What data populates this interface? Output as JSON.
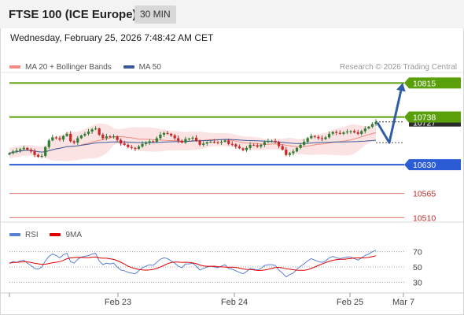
{
  "header": {
    "title": "FTSE 100 (ICE Europe)",
    "timeframe": "30 MIN"
  },
  "date_line": "Wednesday, February 25, 2026 7:48:42 AM CET",
  "legend": {
    "ma20": "MA 20 + Bollinger Bands",
    "ma50": "MA 50",
    "ma20_color": "#f28b82",
    "ma50_color": "#3a5c9e"
  },
  "credit": "Research © 2026 Trading Central",
  "rsi_legend": {
    "rsi": "RSI",
    "ma9": "9MA",
    "rsi_color": "#5b7fd6",
    "ma9_color": "#e00000"
  },
  "colors": {
    "resistance": "#5aa00a",
    "pivot": "#2b5cd6",
    "support": "#e27272",
    "arrow": "#2f5da8",
    "candle_up": "#2e7d32",
    "candle_down": "#c62828",
    "band_fill": "#fbe0e0"
  },
  "chart_data": [
    {
      "type": "candlestick",
      "title": "FTSE 100 (ICE Europe)",
      "timeframe": "30 MIN",
      "x_tick_labels": [
        "Feb 23",
        "Feb 24",
        "Feb 25",
        "Mar 7"
      ],
      "levels": [
        {
          "value": 10815,
          "label": "10815",
          "kind": "resistance"
        },
        {
          "value": 10738,
          "label": "10738",
          "kind": "resistance"
        },
        {
          "value": 10630,
          "label": "10630",
          "kind": "pivot"
        },
        {
          "value": 10565,
          "label": "10565",
          "kind": "support"
        },
        {
          "value": 10510,
          "label": "10510",
          "kind": "support"
        }
      ],
      "last_price": 10727,
      "last_price_label": "10727",
      "arrow": {
        "from": 10725,
        "via": 10680,
        "to": 10815
      },
      "ylim": [
        10500,
        10830
      ],
      "close": [
        10656,
        10660,
        10662,
        10665,
        10668,
        10664,
        10660,
        10652,
        10648,
        10650,
        10670,
        10685,
        10692,
        10690,
        10687,
        10695,
        10700,
        10683,
        10680,
        10690,
        10696,
        10700,
        10705,
        10710,
        10712,
        10698,
        10690,
        10694,
        10692,
        10694,
        10686,
        10678,
        10675,
        10670,
        10668,
        10666,
        10671,
        10677,
        10680,
        10683,
        10682,
        10690,
        10698,
        10702,
        10700,
        10696,
        10690,
        10684,
        10680,
        10688,
        10689,
        10691,
        10684,
        10675,
        10678,
        10681,
        10682,
        10681,
        10680,
        10682,
        10685,
        10677,
        10676,
        10671,
        10667,
        10663,
        10668,
        10675,
        10674,
        10671,
        10675,
        10681,
        10683,
        10684,
        10682,
        10672,
        10664,
        10652,
        10656,
        10660,
        10668,
        10675,
        10682,
        10690,
        10695,
        10693,
        10690,
        10688,
        10692,
        10700,
        10704,
        10702,
        10700,
        10703,
        10705,
        10706,
        10703,
        10700,
        10706,
        10712,
        10716,
        10722,
        10727
      ],
      "series": [
        {
          "name": "MA 20 + Bollinger Bands",
          "indicator": "ma20_bollinger"
        },
        {
          "name": "MA 50",
          "indicator": "ma50"
        }
      ]
    },
    {
      "type": "line",
      "title": "",
      "ylim": [
        20,
        80
      ],
      "y_tick_labels": [
        "70",
        "50",
        "30"
      ],
      "y_ticks": [
        70,
        50,
        30
      ],
      "series": [
        {
          "name": "RSI",
          "values": [
            55,
            57,
            56,
            58,
            59,
            55,
            52,
            48,
            47,
            50,
            58,
            64,
            67,
            65,
            62,
            66,
            68,
            57,
            55,
            60,
            63,
            64,
            65,
            67,
            68,
            58,
            53,
            55,
            54,
            55,
            50,
            46,
            45,
            43,
            42,
            41,
            45,
            49,
            51,
            53,
            52,
            56,
            60,
            62,
            61,
            58,
            55,
            51,
            49,
            54,
            54,
            55,
            51,
            46,
            48,
            50,
            51,
            50,
            49,
            51,
            53,
            48,
            47,
            45,
            43,
            41,
            44,
            48,
            47,
            46,
            48,
            52,
            53,
            53,
            52,
            46,
            42,
            37,
            40,
            42,
            47,
            51,
            54,
            58,
            61,
            59,
            57,
            56,
            58,
            62,
            64,
            62,
            61,
            62,
            63,
            63,
            61,
            59,
            62,
            65,
            67,
            70,
            72
          ]
        },
        {
          "name": "9MA",
          "indicator": "ma9_of_rsi"
        }
      ]
    }
  ]
}
